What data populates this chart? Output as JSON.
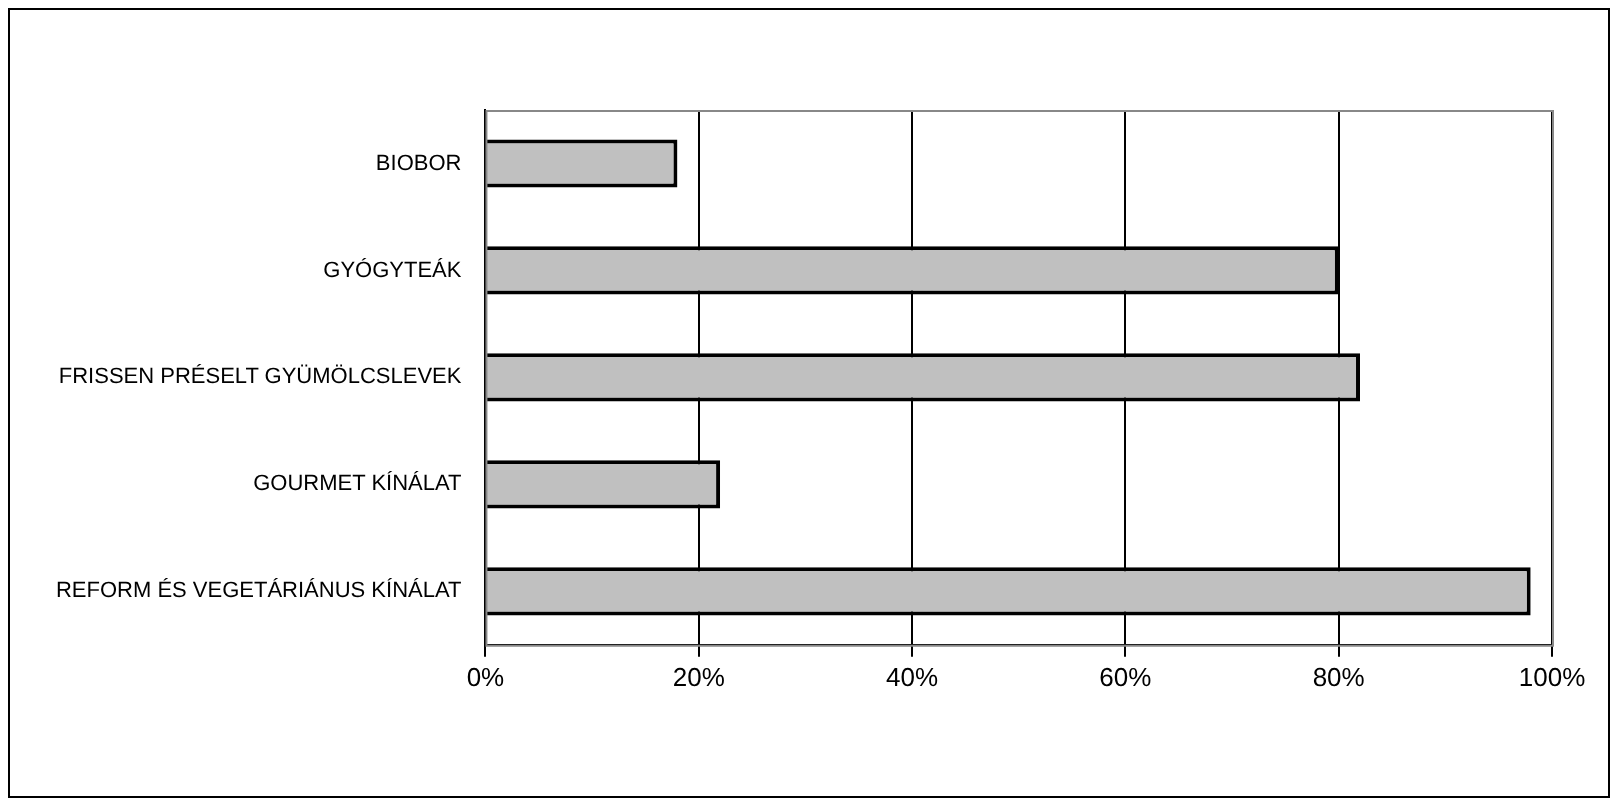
{
  "chart_data": {
    "type": "bar",
    "orientation": "horizontal",
    "categories": [
      "BIOBOR",
      "GYÓGYTEÁK",
      "FRISSEN PRÉSELT GYÜMÖLCSLEVEK",
      "GOURMET KÍNÁLAT",
      "REFORM ÉS VEGETÁRIÁNUS KÍNÁLAT"
    ],
    "values": [
      18,
      80,
      82,
      22,
      98
    ],
    "color": "#c0c0c0",
    "xlim": [
      0,
      100
    ],
    "xticks": [
      {
        "value": 0,
        "label": "0%"
      },
      {
        "value": 20,
        "label": "20%"
      },
      {
        "value": 40,
        "label": "40%"
      },
      {
        "value": 60,
        "label": "60%"
      },
      {
        "value": 80,
        "label": "80%"
      },
      {
        "value": 100,
        "label": "100%"
      }
    ],
    "grid": "x",
    "legend": false
  }
}
